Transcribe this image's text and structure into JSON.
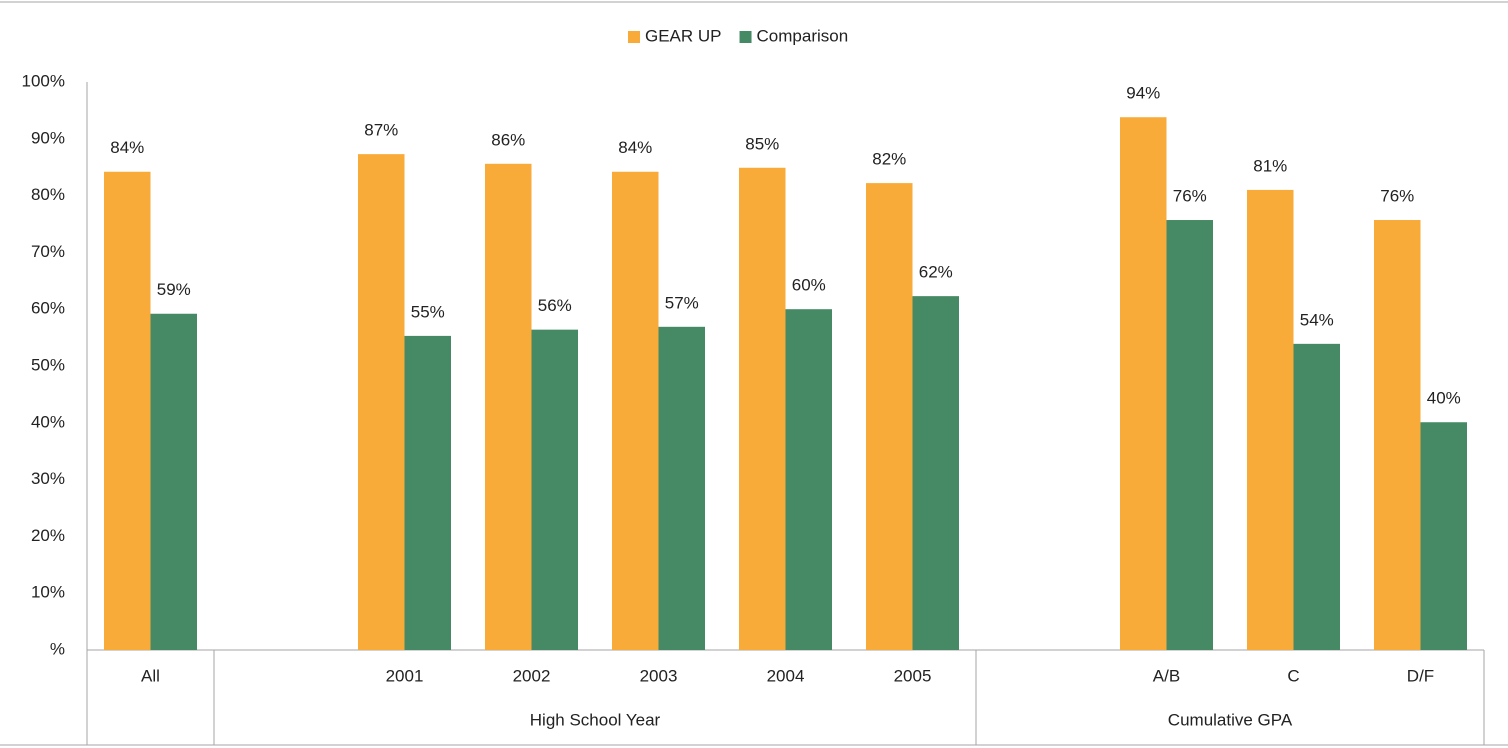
{
  "chart_data": {
    "type": "bar",
    "groups": [
      {
        "categories": [
          "All"
        ]
      },
      {
        "label": "High School Year",
        "categories": [
          null,
          "2001",
          "2002",
          "2003",
          "2004",
          "2005"
        ]
      },
      {
        "label": "Cumulative GPA",
        "categories": [
          null,
          "A/B",
          "C",
          "D/F"
        ]
      }
    ],
    "series": [
      {
        "name": "GEAR UP",
        "color": "#f9ab3a",
        "values": [
          84.2,
          null,
          87.3,
          85.6,
          84.2,
          84.9,
          82.2,
          null,
          93.8,
          81.0,
          75.7
        ],
        "value_labels": [
          "84%",
          null,
          "87%",
          "86%",
          "84%",
          "85%",
          "82%",
          null,
          "94%",
          "81%",
          "76%"
        ]
      },
      {
        "name": "Comparison",
        "color": "#468a65",
        "values": [
          59.2,
          null,
          55.3,
          56.4,
          56.9,
          60.0,
          62.3,
          null,
          75.7,
          53.9,
          40.1
        ],
        "value_labels": [
          "59%",
          null,
          "55%",
          "56%",
          "57%",
          "60%",
          "62%",
          null,
          "76%",
          "54%",
          "40%"
        ]
      }
    ],
    "ylim": [
      0,
      100
    ],
    "yticks": [
      {
        "value": 0,
        "label": "%"
      },
      {
        "value": 10,
        "label": "10%"
      },
      {
        "value": 20,
        "label": "20%"
      },
      {
        "value": 30,
        "label": "30%"
      },
      {
        "value": 40,
        "label": "40%"
      },
      {
        "value": 50,
        "label": "50%"
      },
      {
        "value": 60,
        "label": "60%"
      },
      {
        "value": 70,
        "label": "70%"
      },
      {
        "value": 80,
        "label": "80%"
      },
      {
        "value": 90,
        "label": "90%"
      },
      {
        "value": 100,
        "label": "100%"
      }
    ],
    "grid": false,
    "legend": "top"
  }
}
